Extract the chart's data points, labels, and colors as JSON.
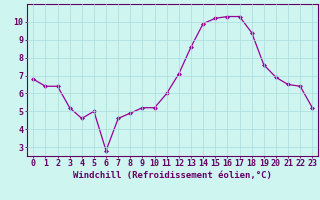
{
  "x": [
    0,
    1,
    2,
    3,
    4,
    5,
    6,
    7,
    8,
    9,
    10,
    11,
    12,
    13,
    14,
    15,
    16,
    17,
    18,
    19,
    20,
    21,
    22,
    23
  ],
  "y": [
    6.8,
    6.4,
    6.4,
    5.2,
    4.6,
    5.0,
    2.8,
    4.6,
    4.9,
    5.2,
    5.2,
    6.0,
    7.1,
    8.6,
    9.9,
    10.2,
    10.3,
    10.3,
    9.4,
    7.6,
    6.9,
    6.5,
    6.4,
    5.2
  ],
  "line_color": "#990099",
  "marker": "D",
  "marker_size": 2.0,
  "bg_color": "#cef5f0",
  "grid_color": "#aadddd",
  "axis_color": "#660066",
  "tick_color": "#660066",
  "xlabel": "Windchill (Refroidissement éolien,°C)",
  "ylim": [
    2.5,
    11.0
  ],
  "xlim": [
    -0.5,
    23.5
  ],
  "yticks": [
    3,
    4,
    5,
    6,
    7,
    8,
    9,
    10
  ],
  "xticks": [
    0,
    1,
    2,
    3,
    4,
    5,
    6,
    7,
    8,
    9,
    10,
    11,
    12,
    13,
    14,
    15,
    16,
    17,
    18,
    19,
    20,
    21,
    22,
    23
  ],
  "xlabel_fontsize": 6.5,
  "tick_fontsize": 6.0,
  "label_color": "#660066",
  "spine_color": "#660066"
}
